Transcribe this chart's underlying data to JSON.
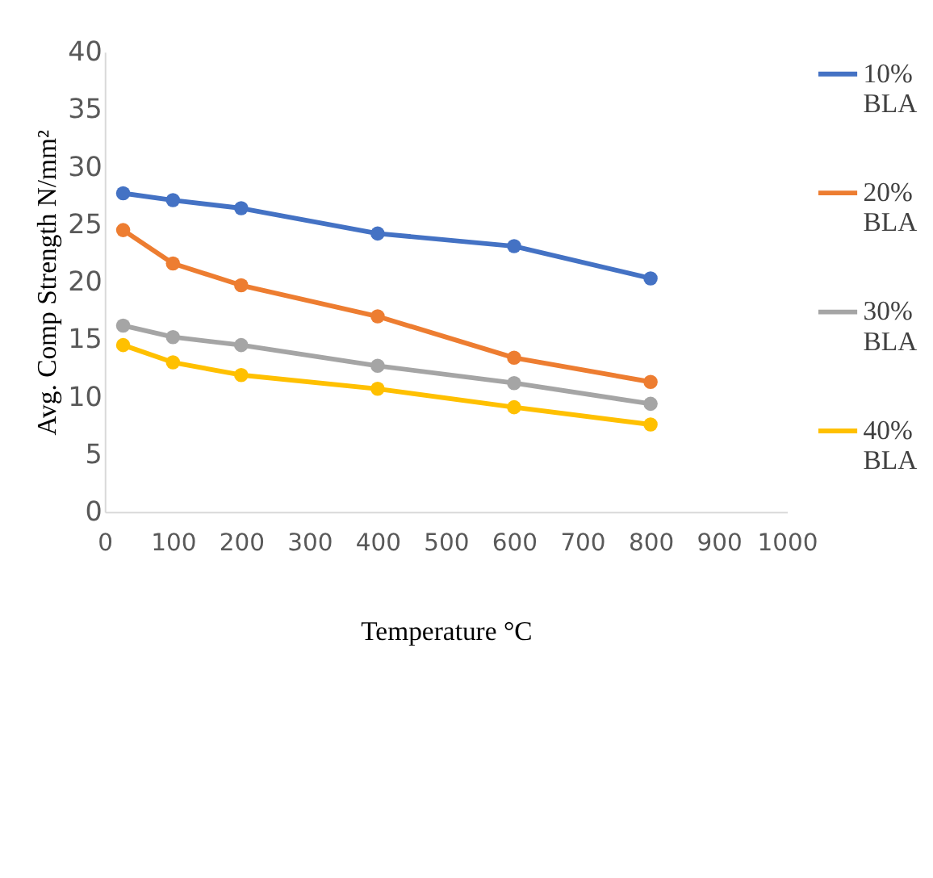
{
  "chart_data": {
    "type": "line",
    "xlabel": "Temperature °C",
    "ylabel": "Avg. Comp Strength N/mm²",
    "x": [
      27,
      100,
      200,
      400,
      600,
      800
    ],
    "series": [
      {
        "name": "10% BLA",
        "color": "#4472c4",
        "values": [
          27.7,
          27.1,
          26.4,
          24.2,
          23.1,
          20.3
        ]
      },
      {
        "name": "20% BLA",
        "color": "#ed7d31",
        "values": [
          24.5,
          21.6,
          19.7,
          17.0,
          13.4,
          11.3
        ]
      },
      {
        "name": "30% BLA",
        "color": "#a5a5a5",
        "values": [
          16.2,
          15.2,
          14.5,
          12.7,
          11.2,
          9.4
        ]
      },
      {
        "name": "40% BLA",
        "color": "#ffc000",
        "values": [
          14.5,
          13.0,
          11.9,
          10.7,
          9.1,
          7.6
        ]
      }
    ],
    "xlim": [
      0,
      1000
    ],
    "xticks": [
      0,
      100,
      200,
      300,
      400,
      500,
      600,
      700,
      800,
      900,
      1000
    ],
    "ylim": [
      0,
      40
    ],
    "yticks": [
      0,
      5,
      10,
      15,
      20,
      25,
      30,
      35,
      40
    ],
    "grid": false,
    "legend": "right",
    "marker": "circle",
    "line_style": "solid"
  }
}
